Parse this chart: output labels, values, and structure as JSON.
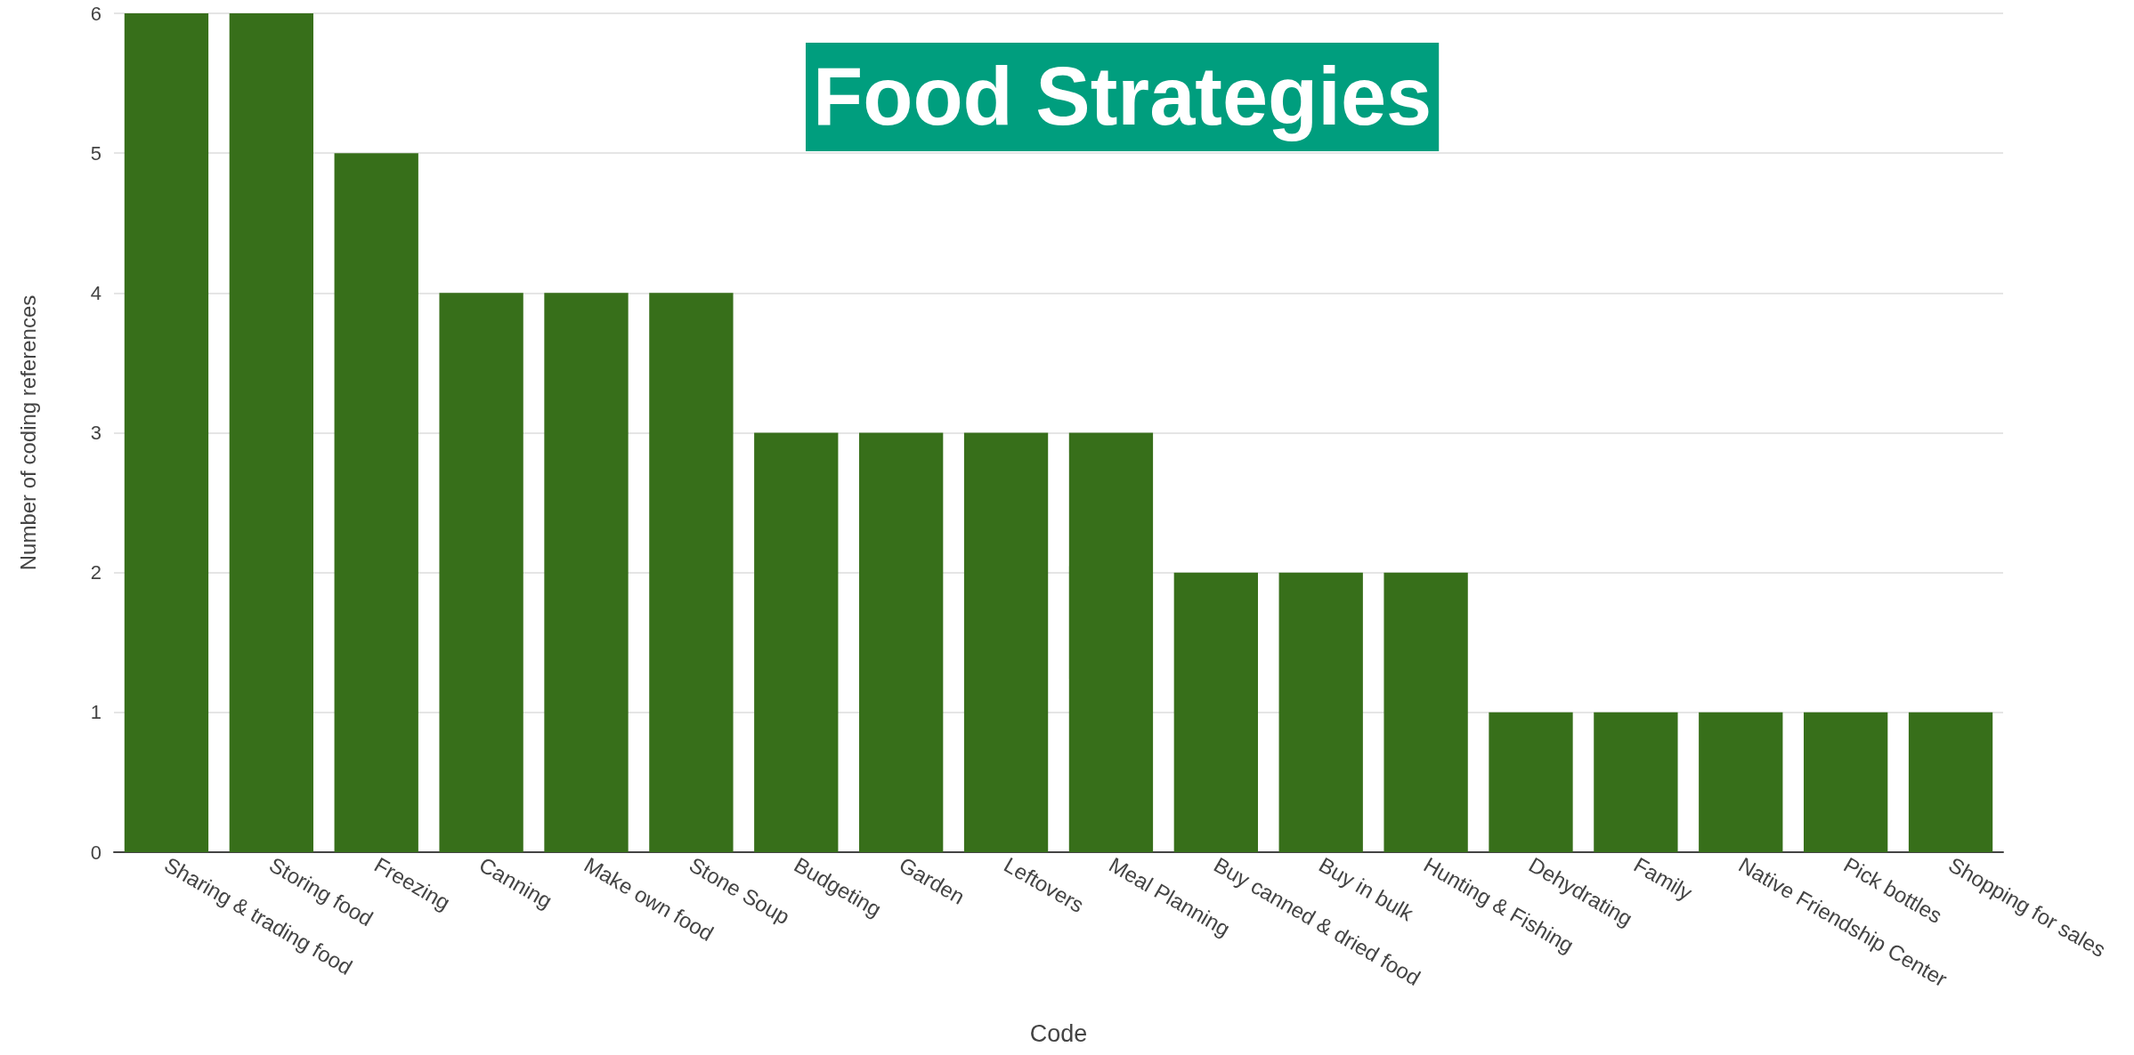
{
  "chart_data": {
    "type": "bar",
    "title": "Food Strategies",
    "xlabel": "Code",
    "ylabel": "Number of coding references",
    "categories": [
      "Sharing & trading food",
      "Storing food",
      "Freezing",
      "Canning",
      "Make own food",
      "Stone Soup",
      "Budgeting",
      "Garden",
      "Leftovers",
      "Meal Planning",
      "Buy canned & dried food",
      "Buy in bulk",
      "Hunting & Fishing",
      "Dehydrating",
      "Family",
      "Native Friendship Center",
      "Pick bottles",
      "Shopping for sales"
    ],
    "values": [
      6,
      6,
      5,
      4,
      4,
      4,
      3,
      3,
      3,
      3,
      2,
      2,
      2,
      1,
      1,
      1,
      1,
      1
    ],
    "color": "#376f1a",
    "ylim": [
      0,
      6
    ],
    "yticks": [
      0,
      1,
      2,
      3,
      4,
      5,
      6
    ],
    "grid": "y"
  }
}
